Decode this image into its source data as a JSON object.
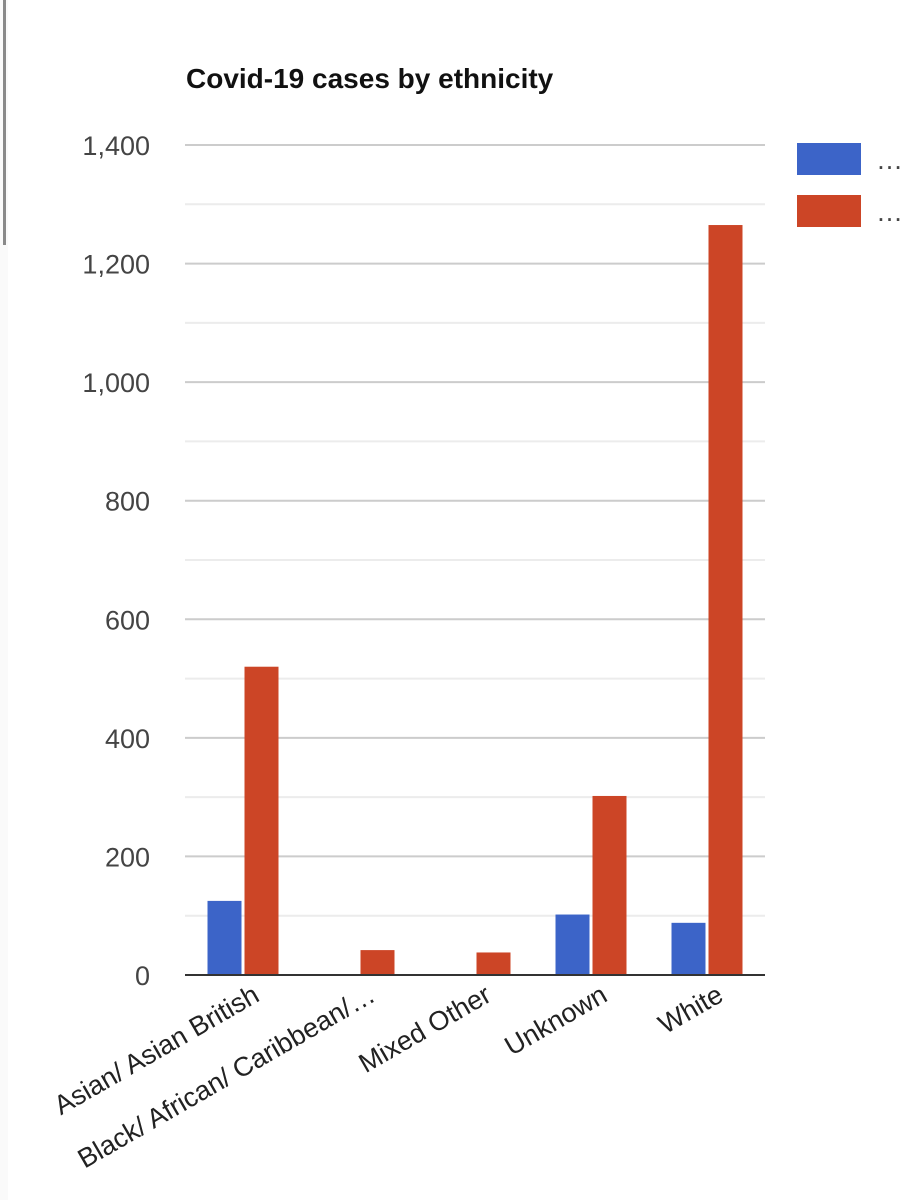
{
  "chart_data": {
    "type": "bar",
    "title": "Covid-19 cases by ethnicity",
    "xlabel": "",
    "ylabel": "",
    "ylim": [
      0,
      1400
    ],
    "y_ticks": [
      "0",
      "200",
      "400",
      "600",
      "800",
      "1,000",
      "1,200",
      "1,400"
    ],
    "y_tick_values": [
      0,
      200,
      400,
      600,
      800,
      1000,
      1200,
      1400
    ],
    "grid": true,
    "categories": [
      "Asian/ Asian British",
      "Black/ African/ Caribbean/…",
      "Mixed Other",
      "Unknown",
      "White"
    ],
    "series": [
      {
        "legend_label": "…",
        "color": "#3c64c8",
        "values": [
          125,
          0,
          0,
          102,
          88
        ]
      },
      {
        "legend_label": "…",
        "color": "#cc4526",
        "values": [
          520,
          42,
          38,
          302,
          1265
        ]
      }
    ],
    "legend_position": "top-right"
  }
}
